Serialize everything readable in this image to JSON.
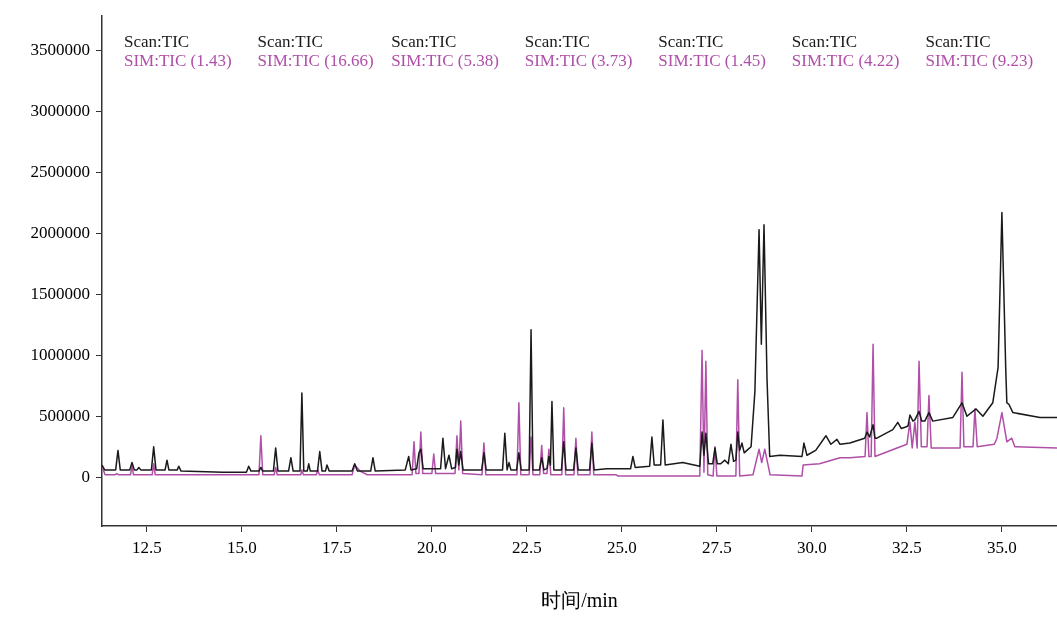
{
  "chart_data": {
    "type": "line",
    "xlabel": "时间/min",
    "xlim": [
      11.32,
      36.45
    ],
    "xticks": [
      12.5,
      {
        "value": 15,
        "label": "15.0"
      },
      17.5,
      {
        "value": 20,
        "label": "20.0"
      },
      22.5,
      {
        "value": 25,
        "label": "25.0"
      },
      27.5,
      {
        "value": 30,
        "label": "30.0"
      },
      32.5,
      {
        "value": 35,
        "label": "35.0"
      }
    ],
    "ylim": [
      -400000,
      3780000
    ],
    "yticks": [
      0,
      500000,
      1000000,
      1500000,
      2000000,
      2500000,
      3000000,
      3500000
    ],
    "grid": false,
    "legend": false,
    "marker": "none",
    "line_style": "solid",
    "annotations": [
      "Scan:TIC",
      "SIM:TIC (1.43)",
      "Scan:TIC",
      "SIM:TIC (16.66)",
      "Scan:TIC",
      "SIM:TIC (5.38)",
      "Scan:TIC",
      "SIM:TIC (3.73)",
      "Scan:TIC",
      "SIM:TIC (1.45)",
      "Scan:TIC",
      "SIM:TIC (4.22)",
      "Scan:TIC",
      "SIM:TIC (9.23)"
    ],
    "series": [
      {
        "color": "#1a1a1a",
        "x": [
          11.32,
          11.39,
          11.68,
          11.74,
          11.8,
          12.05,
          12.11,
          12.17,
          12.24,
          12.29,
          12.34,
          12.62,
          12.68,
          12.74,
          12.98,
          13.03,
          13.08,
          13.3,
          13.34,
          13.4,
          14.5,
          15.12,
          15.18,
          15.24,
          15.45,
          15.5,
          15.55,
          15.83,
          15.89,
          15.95,
          16.23,
          16.29,
          16.35,
          16.53,
          16.58,
          16.63,
          16.72,
          16.76,
          16.8,
          16.99,
          17.05,
          17.11,
          17.2,
          17.24,
          17.3,
          17.9,
          17.97,
          18.04,
          18.39,
          18.45,
          18.51,
          19.3,
          19.39,
          19.45,
          19.6,
          19.66,
          19.71,
          19.77,
          20.23,
          20.29,
          20.36,
          20.45,
          20.52,
          20.62,
          20.66,
          20.71,
          20.76,
          20.82,
          21.31,
          21.37,
          21.43,
          21.86,
          21.92,
          21.98,
          22.03,
          22.08,
          22.23,
          22.29,
          22.35,
          22.56,
          22.61,
          22.66,
          22.83,
          22.89,
          22.95,
          23.03,
          23.08,
          23.12,
          23.16,
          23.21,
          23.41,
          23.47,
          23.53,
          23.73,
          23.79,
          23.85,
          24.15,
          24.21,
          24.27,
          24.6,
          25.23,
          25.29,
          25.35,
          25.73,
          25.79,
          25.85,
          26.02,
          26.08,
          26.14,
          26.6,
          27.05,
          27.11,
          27.16,
          27.21,
          27.28,
          27.39,
          27.45,
          27.51,
          27.6,
          27.71,
          27.8,
          27.87,
          27.94,
          28.0,
          28.05,
          28.1,
          28.16,
          28.22,
          28.29,
          28.4,
          28.5,
          28.61,
          28.67,
          28.74,
          28.82,
          28.89,
          29.16,
          29.74,
          29.79,
          29.87,
          30.1,
          30.37,
          30.5,
          30.66,
          30.74,
          31.0,
          31.39,
          31.45,
          31.52,
          31.61,
          31.66,
          31.71,
          32.13,
          32.26,
          32.35,
          32.45,
          32.53,
          32.58,
          32.66,
          32.71,
          32.82,
          32.89,
          32.97,
          33.08,
          33.18,
          33.71,
          33.95,
          34.08,
          34.32,
          34.5,
          34.76,
          34.9,
          35.0,
          35.1,
          35.13,
          35.18,
          35.29,
          36.0,
          36.45
        ],
        "values": [
          100000,
          60000,
          60000,
          220000,
          60000,
          60000,
          120000,
          60000,
          60000,
          80000,
          60000,
          60000,
          250000,
          60000,
          60000,
          140000,
          60000,
          60000,
          90000,
          50000,
          40000,
          40000,
          90000,
          50000,
          50000,
          80000,
          50000,
          50000,
          240000,
          50000,
          50000,
          160000,
          50000,
          50000,
          690000,
          50000,
          50000,
          110000,
          50000,
          50000,
          210000,
          50000,
          50000,
          100000,
          50000,
          50000,
          110000,
          50000,
          50000,
          160000,
          50000,
          60000,
          170000,
          60000,
          70000,
          200000,
          230000,
          70000,
          70000,
          320000,
          70000,
          180000,
          70000,
          80000,
          230000,
          100000,
          210000,
          60000,
          60000,
          200000,
          60000,
          60000,
          360000,
          60000,
          120000,
          60000,
          60000,
          200000,
          60000,
          60000,
          1210000,
          60000,
          60000,
          160000,
          60000,
          70000,
          170000,
          100000,
          620000,
          60000,
          60000,
          290000,
          60000,
          60000,
          240000,
          60000,
          60000,
          280000,
          60000,
          70000,
          70000,
          170000,
          80000,
          90000,
          330000,
          100000,
          100000,
          470000,
          100000,
          120000,
          90000,
          370000,
          180000,
          360000,
          110000,
          110000,
          240000,
          110000,
          110000,
          140000,
          110000,
          270000,
          130000,
          140000,
          370000,
          220000,
          280000,
          200000,
          220000,
          250000,
          700000,
          2030000,
          1090000,
          2070000,
          800000,
          170000,
          180000,
          170000,
          280000,
          180000,
          220000,
          340000,
          270000,
          310000,
          270000,
          280000,
          320000,
          370000,
          330000,
          430000,
          320000,
          320000,
          390000,
          450000,
          400000,
          410000,
          420000,
          510000,
          460000,
          470000,
          540000,
          460000,
          460000,
          530000,
          460000,
          490000,
          610000,
          500000,
          560000,
          500000,
          610000,
          900000,
          2170000,
          900000,
          610000,
          600000,
          530000,
          490000,
          490000
        ]
      },
      {
        "color": "#b04fa8",
        "x": [
          11.32,
          11.4,
          11.66,
          11.71,
          11.76,
          12.07,
          12.11,
          12.15,
          12.64,
          12.68,
          12.72,
          15.45,
          15.5,
          15.55,
          15.85,
          15.89,
          15.93,
          16.55,
          16.58,
          16.62,
          16.96,
          17.0,
          17.04,
          17.9,
          17.97,
          18.11,
          18.3,
          19.48,
          19.53,
          19.58,
          19.66,
          19.71,
          19.76,
          20.0,
          20.05,
          20.1,
          20.61,
          20.66,
          20.71,
          20.76,
          20.81,
          21.32,
          21.37,
          21.42,
          22.24,
          22.29,
          22.34,
          22.56,
          22.61,
          22.66,
          22.84,
          22.89,
          22.94,
          23.03,
          23.08,
          23.13,
          23.42,
          23.47,
          23.52,
          23.74,
          23.79,
          23.84,
          24.16,
          24.21,
          24.26,
          24.85,
          24.9,
          27.05,
          27.11,
          27.16,
          27.21,
          27.26,
          27.4,
          27.45,
          27.5,
          28.0,
          28.05,
          28.1,
          28.45,
          28.61,
          28.68,
          28.76,
          28.9,
          29.74,
          29.77,
          30.2,
          30.74,
          31.0,
          31.4,
          31.45,
          31.5,
          31.56,
          31.61,
          31.66,
          32.24,
          32.5,
          32.58,
          32.64,
          32.71,
          32.77,
          32.82,
          32.88,
          33.03,
          33.08,
          33.14,
          33.9,
          33.95,
          34.0,
          34.24,
          34.29,
          34.35,
          34.8,
          34.87,
          35.0,
          35.13,
          35.26,
          35.34,
          36.45
        ],
        "values": [
          90000,
          20000,
          20000,
          30000,
          20000,
          20000,
          90000,
          20000,
          20000,
          110000,
          20000,
          20000,
          340000,
          20000,
          20000,
          80000,
          20000,
          20000,
          60000,
          20000,
          20000,
          60000,
          20000,
          20000,
          100000,
          50000,
          20000,
          20000,
          290000,
          30000,
          30000,
          370000,
          30000,
          30000,
          190000,
          30000,
          30000,
          340000,
          60000,
          460000,
          30000,
          20000,
          280000,
          20000,
          20000,
          610000,
          20000,
          20000,
          330000,
          20000,
          20000,
          260000,
          30000,
          30000,
          230000,
          20000,
          20000,
          570000,
          20000,
          20000,
          320000,
          20000,
          20000,
          370000,
          20000,
          20000,
          10000,
          10000,
          1040000,
          40000,
          950000,
          20000,
          10000,
          250000,
          10000,
          10000,
          800000,
          10000,
          20000,
          230000,
          120000,
          230000,
          20000,
          10000,
          100000,
          110000,
          160000,
          160000,
          170000,
          530000,
          170000,
          170000,
          1090000,
          170000,
          240000,
          270000,
          450000,
          240000,
          450000,
          240000,
          950000,
          250000,
          250000,
          670000,
          240000,
          240000,
          860000,
          250000,
          250000,
          560000,
          250000,
          270000,
          320000,
          530000,
          290000,
          320000,
          250000,
          240000
        ]
      }
    ]
  }
}
